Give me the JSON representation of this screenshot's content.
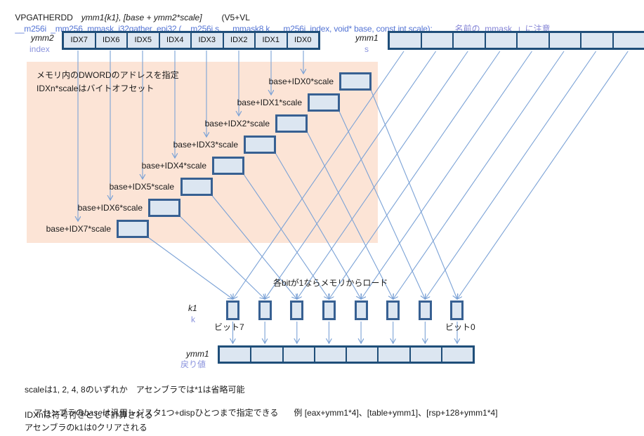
{
  "title": {
    "mnemonic": "VPGATHERDD",
    "operands": "ymm1{k1}, [base + ymm2*scale]",
    "version": "(V5+VL",
    "intrinsic": "__m256i  _mm256_mmask_i32gather_epi32 (__m256i s, __mmask8 k, __m256i  index, void* base, const int scale);",
    "note": "名前の_mmask_」に注意"
  },
  "ymm2": {
    "name": "ymm2",
    "alias": "index",
    "cells": [
      "IDX7",
      "IDX6",
      "IDX5",
      "IDX4",
      "IDX3",
      "IDX2",
      "IDX1",
      "IDX0"
    ]
  },
  "ymm1_src": {
    "name": "ymm1",
    "alias": "s"
  },
  "memo_box": {
    "line1": "メモリ内のDWORDのアドレスを指定",
    "line2": "IDXn*scaleはバイトオフセット"
  },
  "memory": {
    "rows": [
      {
        "label": "base+IDX0*scale"
      },
      {
        "label": "base+IDX1*scale"
      },
      {
        "label": "base+IDX2*scale"
      },
      {
        "label": "base+IDX3*scale"
      },
      {
        "label": "base+IDX4*scale"
      },
      {
        "label": "base+IDX5*scale"
      },
      {
        "label": "base+IDX6*scale"
      },
      {
        "label": "base+IDX7*scale"
      }
    ]
  },
  "mask": {
    "name": "k1",
    "alias": "k",
    "load_note": "各bitが1ならメモリからロード",
    "bit7_label": "ビット7",
    "bit0_label": "ビット0"
  },
  "result": {
    "name": "ymm1",
    "alias": "戻り値"
  },
  "footnotes": {
    "line1": "scaleは1, 2, 4, 8のいずれか　アセンブラでは*1は省略可能",
    "line2_pre": "アセンブラの",
    "line2_base": "base",
    "line2_post": "は汎用レジスタ1つ+dispひとつまで指定できる",
    "line2_example": "例 [eax+ymm1*4]、[table+ymm1]、[rsp+128+ymm1*4]",
    "line3": "IDXnは符号付きとして計算される",
    "line4": "アセンブラのk1は0クリアされる"
  },
  "colors": {
    "register_border": "#1f4e79",
    "box_border": "#376092",
    "cell_fill": "#dce6f1",
    "memo_bg": "#fce4d6",
    "connector_line": "#7ba2d6",
    "code_text": "#5575d5",
    "label_text": "#8a93dd"
  }
}
